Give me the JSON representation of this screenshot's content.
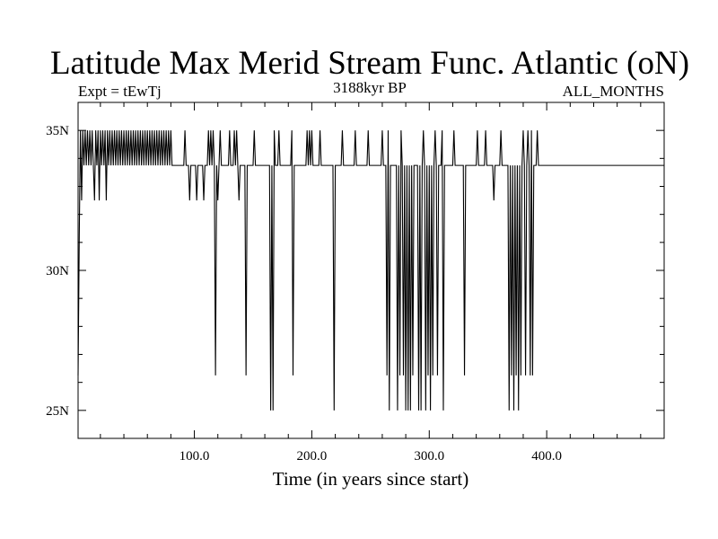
{
  "chart_data": {
    "type": "line",
    "title": "Latitude Max Merid Stream Func. Atlantic (oN)",
    "subtitle_left": "Expt = tEwTj",
    "subtitle_center": "3188kyr BP",
    "subtitle_right": "ALL_MONTHS",
    "xlabel": "Time (in years since start)",
    "ylabel": "",
    "xlim": [
      1,
      500
    ],
    "ylim": [
      24,
      36
    ],
    "x_ticks": [
      {
        "value": 100,
        "label": "100.0"
      },
      {
        "value": 200,
        "label": "200.0"
      },
      {
        "value": 300,
        "label": "300.0"
      },
      {
        "value": 400,
        "label": "400.0"
      }
    ],
    "y_ticks": [
      {
        "value": 25,
        "label": "25N"
      },
      {
        "value": 30,
        "label": "30N"
      },
      {
        "value": 35,
        "label": "35N"
      }
    ],
    "grid": false,
    "baseline": 33.75,
    "series": [
      {
        "color": "#000000",
        "points": [
          [
            1,
            26.25
          ],
          [
            2,
            31.25
          ],
          [
            3,
            35
          ],
          [
            4,
            32.5
          ],
          [
            5,
            35
          ],
          [
            6,
            33.75
          ],
          [
            7,
            35
          ],
          [
            8,
            33.75
          ],
          [
            9,
            35
          ],
          [
            10,
            33.75
          ],
          [
            11,
            35
          ],
          [
            12,
            33.75
          ],
          [
            13,
            35
          ],
          [
            14,
            33.75
          ],
          [
            15,
            32.5
          ],
          [
            16,
            35
          ],
          [
            17,
            33.75
          ],
          [
            18,
            35
          ],
          [
            19,
            32.5
          ],
          [
            20,
            35
          ],
          [
            21,
            33.75
          ],
          [
            22,
            35
          ],
          [
            23,
            33.75
          ],
          [
            24,
            35
          ],
          [
            25,
            32.5
          ],
          [
            26,
            35
          ],
          [
            27,
            33.75
          ],
          [
            28,
            35
          ],
          [
            29,
            33.75
          ],
          [
            30,
            35
          ],
          [
            31,
            33.75
          ],
          [
            32,
            35
          ],
          [
            33,
            33.75
          ],
          [
            34,
            35
          ],
          [
            35,
            33.75
          ],
          [
            36,
            35
          ],
          [
            37,
            33.75
          ],
          [
            38,
            35
          ],
          [
            39,
            33.75
          ],
          [
            40,
            35
          ],
          [
            41,
            33.75
          ],
          [
            42,
            35
          ],
          [
            43,
            33.75
          ],
          [
            44,
            35
          ],
          [
            45,
            33.75
          ],
          [
            46,
            35
          ],
          [
            47,
            33.75
          ],
          [
            48,
            35
          ],
          [
            49,
            33.75
          ],
          [
            50,
            35
          ],
          [
            51,
            33.75
          ],
          [
            52,
            35
          ],
          [
            53,
            33.75
          ],
          [
            54,
            35
          ],
          [
            55,
            33.75
          ],
          [
            56,
            35
          ],
          [
            57,
            33.75
          ],
          [
            58,
            35
          ],
          [
            59,
            33.75
          ],
          [
            60,
            35
          ],
          [
            61,
            33.75
          ],
          [
            62,
            35
          ],
          [
            63,
            33.75
          ],
          [
            64,
            35
          ],
          [
            65,
            33.75
          ],
          [
            66,
            35
          ],
          [
            67,
            33.75
          ],
          [
            68,
            35
          ],
          [
            69,
            33.75
          ],
          [
            70,
            35
          ],
          [
            71,
            33.75
          ],
          [
            72,
            35
          ],
          [
            73,
            33.75
          ],
          [
            74,
            35
          ],
          [
            75,
            33.75
          ],
          [
            76,
            35
          ],
          [
            77,
            33.75
          ],
          [
            78,
            35
          ],
          [
            79,
            33.75
          ],
          [
            80,
            35
          ],
          [
            81,
            33.75
          ],
          [
            82,
            33.75
          ],
          [
            91,
            33.75
          ],
          [
            92,
            35
          ],
          [
            93,
            33.75
          ],
          [
            95,
            33.75
          ],
          [
            96,
            32.5
          ],
          [
            97,
            33.75
          ],
          [
            101,
            33.75
          ],
          [
            102,
            32.5
          ],
          [
            103,
            33.75
          ],
          [
            107,
            33.75
          ],
          [
            108,
            32.5
          ],
          [
            109,
            33.75
          ],
          [
            111,
            33.75
          ],
          [
            112,
            35
          ],
          [
            113,
            33.75
          ],
          [
            114,
            35
          ],
          [
            115,
            33.75
          ],
          [
            116,
            35
          ],
          [
            117,
            33.75
          ],
          [
            118,
            26.25
          ],
          [
            119,
            33.75
          ],
          [
            120,
            32.5
          ],
          [
            121,
            33.75
          ],
          [
            122,
            35
          ],
          [
            123,
            33.75
          ],
          [
            129,
            33.75
          ],
          [
            130,
            35
          ],
          [
            131,
            33.75
          ],
          [
            133,
            33.75
          ],
          [
            134,
            35
          ],
          [
            135,
            33.75
          ],
          [
            136,
            35
          ],
          [
            137,
            33.75
          ],
          [
            138,
            32.5
          ],
          [
            139,
            33.75
          ],
          [
            143,
            33.75
          ],
          [
            144,
            26.25
          ],
          [
            145,
            33.75
          ],
          [
            150,
            33.75
          ],
          [
            151,
            35
          ],
          [
            152,
            33.75
          ],
          [
            164,
            33.75
          ],
          [
            165,
            25
          ],
          [
            166,
            33.75
          ],
          [
            167,
            25
          ],
          [
            168,
            35
          ],
          [
            169,
            33.75
          ],
          [
            171,
            33.75
          ],
          [
            172,
            35
          ],
          [
            173,
            33.75
          ],
          [
            182,
            33.75
          ],
          [
            183,
            35
          ],
          [
            184,
            26.25
          ],
          [
            185,
            33.75
          ],
          [
            195,
            33.75
          ],
          [
            196,
            35
          ],
          [
            197,
            33.75
          ],
          [
            198,
            35
          ],
          [
            199,
            33.75
          ],
          [
            200,
            35
          ],
          [
            201,
            33.75
          ],
          [
            206,
            33.75
          ],
          [
            207,
            35
          ],
          [
            208,
            33.75
          ],
          [
            218,
            33.75
          ],
          [
            219,
            25
          ],
          [
            220,
            33.75
          ],
          [
            225,
            33.75
          ],
          [
            226,
            35
          ],
          [
            227,
            33.75
          ],
          [
            236,
            33.75
          ],
          [
            237,
            35
          ],
          [
            238,
            33.75
          ],
          [
            247,
            33.75
          ],
          [
            248,
            35
          ],
          [
            249,
            33.75
          ],
          [
            259,
            33.75
          ],
          [
            260,
            35
          ],
          [
            261,
            33.75
          ],
          [
            263,
            33.75
          ],
          [
            264,
            26.25
          ],
          [
            265,
            35
          ],
          [
            266,
            25
          ],
          [
            267,
            33.75
          ],
          [
            272,
            33.75
          ],
          [
            273,
            25
          ],
          [
            274,
            33.75
          ],
          [
            275,
            26.25
          ],
          [
            276,
            35
          ],
          [
            277,
            33.75
          ],
          [
            278,
            26.25
          ],
          [
            279,
            33.75
          ],
          [
            280,
            25
          ],
          [
            281,
            33.75
          ],
          [
            282,
            25
          ],
          [
            283,
            33.75
          ],
          [
            284,
            25
          ],
          [
            285,
            33.75
          ],
          [
            286,
            26.25
          ],
          [
            287,
            33.75
          ],
          [
            290,
            33.75
          ],
          [
            291,
            25
          ],
          [
            292,
            33.75
          ],
          [
            293,
            25
          ],
          [
            294,
            33.75
          ],
          [
            295,
            35
          ],
          [
            296,
            33.75
          ],
          [
            297,
            25
          ],
          [
            298,
            33.75
          ],
          [
            299,
            26.25
          ],
          [
            300,
            33.75
          ],
          [
            301,
            25
          ],
          [
            302,
            33.75
          ],
          [
            303,
            26.25
          ],
          [
            304,
            33.75
          ],
          [
            305,
            35
          ],
          [
            306,
            33.75
          ],
          [
            307,
            26.25
          ],
          [
            308,
            33.75
          ],
          [
            310,
            33.75
          ],
          [
            311,
            35
          ],
          [
            312,
            25
          ],
          [
            313,
            33.75
          ],
          [
            320,
            33.75
          ],
          [
            321,
            35
          ],
          [
            322,
            33.75
          ],
          [
            329,
            33.75
          ],
          [
            330,
            26.25
          ],
          [
            331,
            33.75
          ],
          [
            340,
            33.75
          ],
          [
            341,
            35
          ],
          [
            342,
            33.75
          ],
          [
            347,
            33.75
          ],
          [
            348,
            35
          ],
          [
            349,
            33.75
          ],
          [
            354,
            33.75
          ],
          [
            355,
            32.5
          ],
          [
            356,
            33.75
          ],
          [
            360,
            33.75
          ],
          [
            361,
            35
          ],
          [
            362,
            33.75
          ],
          [
            367,
            33.75
          ],
          [
            368,
            25
          ],
          [
            369,
            33.75
          ],
          [
            370,
            26.25
          ],
          [
            371,
            33.75
          ],
          [
            372,
            25
          ],
          [
            373,
            33.75
          ],
          [
            374,
            26.25
          ],
          [
            375,
            33.75
          ],
          [
            376,
            25
          ],
          [
            377,
            33.75
          ],
          [
            378,
            26.25
          ],
          [
            379,
            33.75
          ],
          [
            380,
            35
          ],
          [
            381,
            33.75
          ],
          [
            382,
            26.25
          ],
          [
            383,
            33.75
          ],
          [
            384,
            35
          ],
          [
            385,
            33.75
          ],
          [
            386,
            26.25
          ],
          [
            387,
            35
          ],
          [
            388,
            26.25
          ],
          [
            389,
            33.75
          ],
          [
            391,
            33.75
          ],
          [
            392,
            35
          ],
          [
            393,
            33.75
          ],
          [
            400,
            33.75
          ]
        ]
      }
    ]
  }
}
